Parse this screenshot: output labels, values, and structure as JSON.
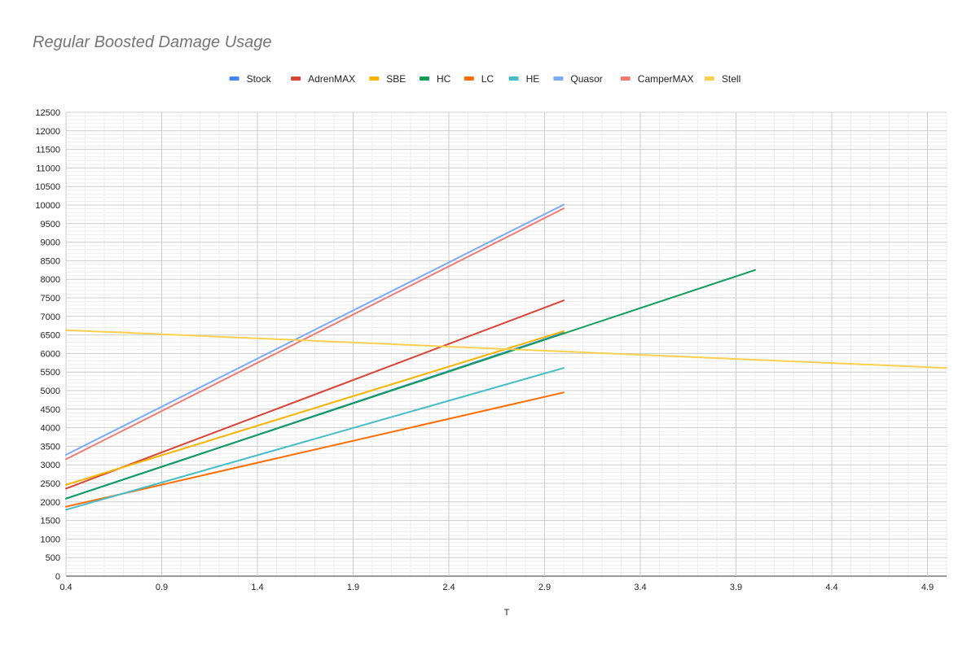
{
  "chart_data": {
    "type": "line",
    "title": "Regular Boosted Damage Usage",
    "xlabel": "T",
    "ylabel": "",
    "xlim": [
      0.4,
      5.0
    ],
    "ylim": [
      0,
      12500
    ],
    "x_ticks": [
      "0.4",
      "0.9",
      "1.4",
      "1.9",
      "2.4",
      "2.9",
      "3.4",
      "3.9",
      "4.4",
      "4.9"
    ],
    "y_ticks": [
      "0",
      "500",
      "1000",
      "1500",
      "2000",
      "2500",
      "3000",
      "3500",
      "4000",
      "4500",
      "5000",
      "5500",
      "6000",
      "6500",
      "7000",
      "7500",
      "8000",
      "8500",
      "9000",
      "9500",
      "10000",
      "10500",
      "11000",
      "11500",
      "12000",
      "12500"
    ],
    "grid": true,
    "legend_position": "top",
    "series": [
      {
        "name": "Stock",
        "color": "#4285f4",
        "x": [
          0.4,
          3.0
        ],
        "y": [
          2090,
          6560
        ]
      },
      {
        "name": "AdrenMAX",
        "color": "#db4437",
        "x": [
          0.4,
          3.0
        ],
        "y": [
          2360,
          7430
        ]
      },
      {
        "name": "SBE",
        "color": "#f4b400",
        "x": [
          0.4,
          3.0
        ],
        "y": [
          2460,
          6600
        ]
      },
      {
        "name": "HC",
        "color": "#0f9d58",
        "x": [
          0.4,
          4.0
        ],
        "y": [
          2090,
          8250
        ]
      },
      {
        "name": "LC",
        "color": "#ff6d01",
        "x": [
          0.4,
          3.0
        ],
        "y": [
          1870,
          4950
        ]
      },
      {
        "name": "HE",
        "color": "#46bdc6",
        "x": [
          0.4,
          3.0
        ],
        "y": [
          1790,
          5610
        ]
      },
      {
        "name": "Quasor",
        "color": "#7baaf7",
        "x": [
          0.4,
          3.0
        ],
        "y": [
          3270,
          10010
        ]
      },
      {
        "name": "CamperMAX",
        "color": "#f07b72",
        "x": [
          0.4,
          3.0
        ],
        "y": [
          3150,
          9910
        ]
      },
      {
        "name": "Stell",
        "color": "#fcd04f",
        "x": [
          0.4,
          5.0
        ],
        "y": [
          6630,
          5610
        ]
      }
    ]
  }
}
